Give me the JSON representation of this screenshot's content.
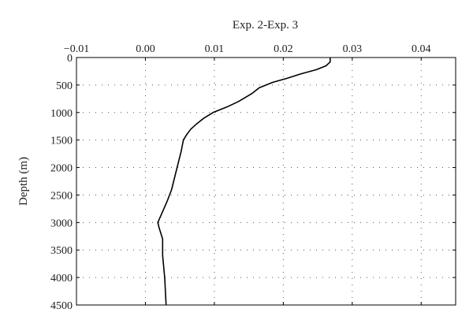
{
  "chart_data": {
    "type": "line",
    "title": "",
    "xlabel": "Exp. 2-Exp. 3",
    "ylabel": "Depth (m)",
    "x_axis_position": "top",
    "y_axis_inverted": true,
    "xlim": [
      -0.01,
      0.045
    ],
    "ylim": [
      0,
      4500
    ],
    "x_ticks": [
      -0.01,
      0.0,
      0.01,
      0.02,
      0.03,
      0.04
    ],
    "x_tick_labels": [
      "−0.01",
      "0.00",
      "0.01",
      "0.02",
      "0.03",
      "0.04"
    ],
    "y_ticks": [
      0,
      500,
      1000,
      1500,
      2000,
      2500,
      3000,
      3500,
      4000,
      4500
    ],
    "y_tick_labels": [
      "0",
      "500",
      "1000",
      "1500",
      "2000",
      "2500",
      "3000",
      "3500",
      "4000",
      "4500"
    ],
    "grid": true,
    "grid_style": "dotted",
    "line_color": "#000000",
    "series": [
      {
        "x": [
          0.0268,
          0.0268,
          0.0262,
          0.0248,
          0.0225,
          0.0205,
          0.0185,
          0.0165,
          0.0155,
          0.0135,
          0.0118,
          0.0098,
          0.0085,
          0.0075,
          0.0066,
          0.006,
          0.0055,
          0.0052,
          0.0048,
          0.0044,
          0.0038,
          0.0032,
          0.0025,
          0.0018,
          0.002,
          0.0025,
          0.0025,
          0.0028,
          0.003
        ],
        "y": [
          0,
          80,
          150,
          220,
          300,
          380,
          450,
          550,
          650,
          800,
          900,
          1000,
          1100,
          1200,
          1300,
          1400,
          1500,
          1700,
          1900,
          2100,
          2400,
          2600,
          2800,
          3000,
          3100,
          3300,
          3600,
          4000,
          4500
        ]
      }
    ]
  }
}
